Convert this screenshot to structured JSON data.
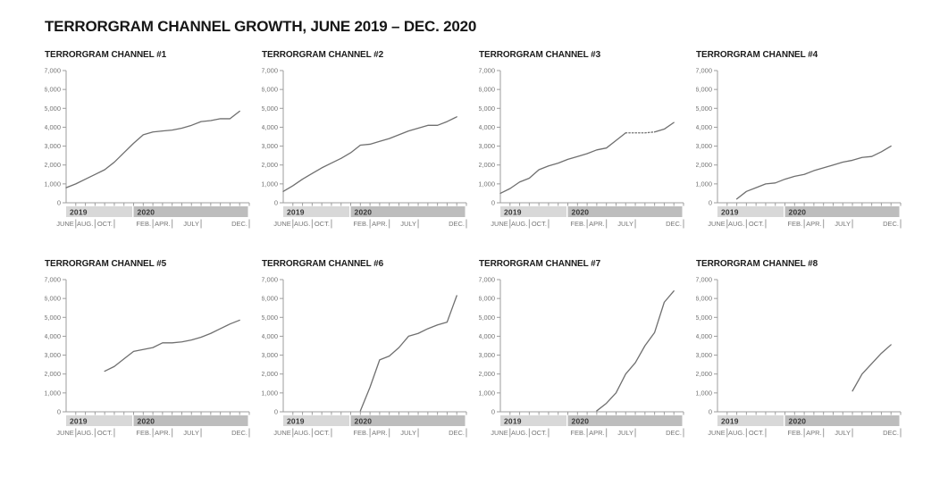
{
  "page": {
    "title": "TERRORGRAM CHANNEL GROWTH, JUNE 2019 – DEC. 2020"
  },
  "chart_data": {
    "type": "line",
    "layout": "small-multiples-4x2",
    "x_unit": "month",
    "months": [
      "2019-06",
      "2019-07",
      "2019-08",
      "2019-09",
      "2019-10",
      "2019-11",
      "2019-12",
      "2020-01",
      "2020-02",
      "2020-03",
      "2020-04",
      "2020-05",
      "2020-06",
      "2020-07",
      "2020-08",
      "2020-09",
      "2020-10",
      "2020-11",
      "2020-12"
    ],
    "ylim": [
      0,
      7000
    ],
    "y_tick_values": [
      0,
      1000,
      2000,
      3000,
      4000,
      5000,
      6000,
      7000
    ],
    "y_tick_labels": [
      "0",
      "1,000",
      "2,000",
      "3,000",
      "4,000",
      "5,000",
      "6,000",
      "7,000"
    ],
    "x_month_labels": [
      {
        "label": "JUNE",
        "boundary": 1
      },
      {
        "label": "AUG.",
        "boundary": 3
      },
      {
        "label": "OCT.",
        "boundary": 5
      },
      {
        "label": "FEB.",
        "boundary": 9
      },
      {
        "label": "APR.",
        "boundary": 11
      },
      {
        "label": "JULY",
        "boundary": 14
      },
      {
        "label": "DEC.",
        "boundary": 19
      }
    ],
    "year_bands": [
      {
        "label": "2019",
        "from_month": 0,
        "to_month": 7,
        "color": "#d8d8d8"
      },
      {
        "label": "2020",
        "from_month": 7,
        "to_month": 19,
        "color": "#bdbdbd"
      }
    ],
    "line_color": "#6f6f6f",
    "axis_color": "#9c9c9c",
    "grid": "off",
    "legend": "none",
    "charts": [
      {
        "title": "TERRORGRAM CHANNEL #1",
        "dash_range": null,
        "values": [
          800,
          1000,
          1250,
          1500,
          1750,
          2150,
          2650,
          3150,
          3600,
          3750,
          3800,
          3850,
          3950,
          4100,
          4300,
          4350,
          4450,
          4450,
          4850
        ]
      },
      {
        "title": "TERRORGRAM CHANNEL #2",
        "dash_range": null,
        "values": [
          600,
          900,
          1250,
          1550,
          1850,
          2100,
          2350,
          2650,
          3050,
          3100,
          3250,
          3400,
          3600,
          3800,
          3950,
          4100,
          4100,
          4300,
          4550
        ]
      },
      {
        "title": "TERRORGRAM CHANNEL #3",
        "dash_range": [
          13,
          16
        ],
        "values": [
          500,
          750,
          1100,
          1300,
          1750,
          1950,
          2100,
          2300,
          2450,
          2600,
          2800,
          2900,
          3300,
          3700,
          3700,
          3700,
          3750,
          3900,
          4250
        ]
      },
      {
        "title": "TERRORGRAM CHANNEL #4",
        "dash_range": null,
        "values": [
          null,
          null,
          200,
          600,
          800,
          1000,
          1050,
          1250,
          1400,
          1500,
          1700,
          1850,
          2000,
          2150,
          2250,
          2400,
          2450,
          2700,
          3000
        ]
      },
      {
        "title": "TERRORGRAM CHANNEL #5",
        "dash_range": null,
        "values": [
          null,
          null,
          null,
          null,
          2150,
          2400,
          2800,
          3200,
          3300,
          3400,
          3650,
          3650,
          3700,
          3800,
          3950,
          4150,
          4400,
          4650,
          4850
        ]
      },
      {
        "title": "TERRORGRAM CHANNEL #6",
        "dash_range": null,
        "values": [
          null,
          null,
          null,
          null,
          null,
          null,
          null,
          null,
          50,
          1300,
          2750,
          2950,
          3400,
          4000,
          4150,
          4400,
          4600,
          4750,
          6150
        ]
      },
      {
        "title": "TERRORGRAM CHANNEL #7",
        "dash_range": null,
        "values": [
          null,
          null,
          null,
          null,
          null,
          null,
          null,
          null,
          null,
          null,
          50,
          450,
          1000,
          2000,
          2600,
          3500,
          4200,
          5800,
          6400
        ]
      },
      {
        "title": "TERRORGRAM CHANNEL #8",
        "dash_range": null,
        "values": [
          null,
          null,
          null,
          null,
          null,
          null,
          null,
          null,
          null,
          null,
          null,
          null,
          null,
          null,
          1100,
          2000,
          2550,
          3100,
          3550
        ]
      }
    ]
  },
  "colors": {
    "background": "#ffffff",
    "title_text": "#161616",
    "chart_title_text": "#1b1b1b",
    "tick_text": "#757575",
    "year_text": "#3a3a3a",
    "band_2019": "#d8d8d8",
    "band_2020": "#bdbdbd",
    "line": "#6f6f6f",
    "axis": "#9c9c9c"
  }
}
